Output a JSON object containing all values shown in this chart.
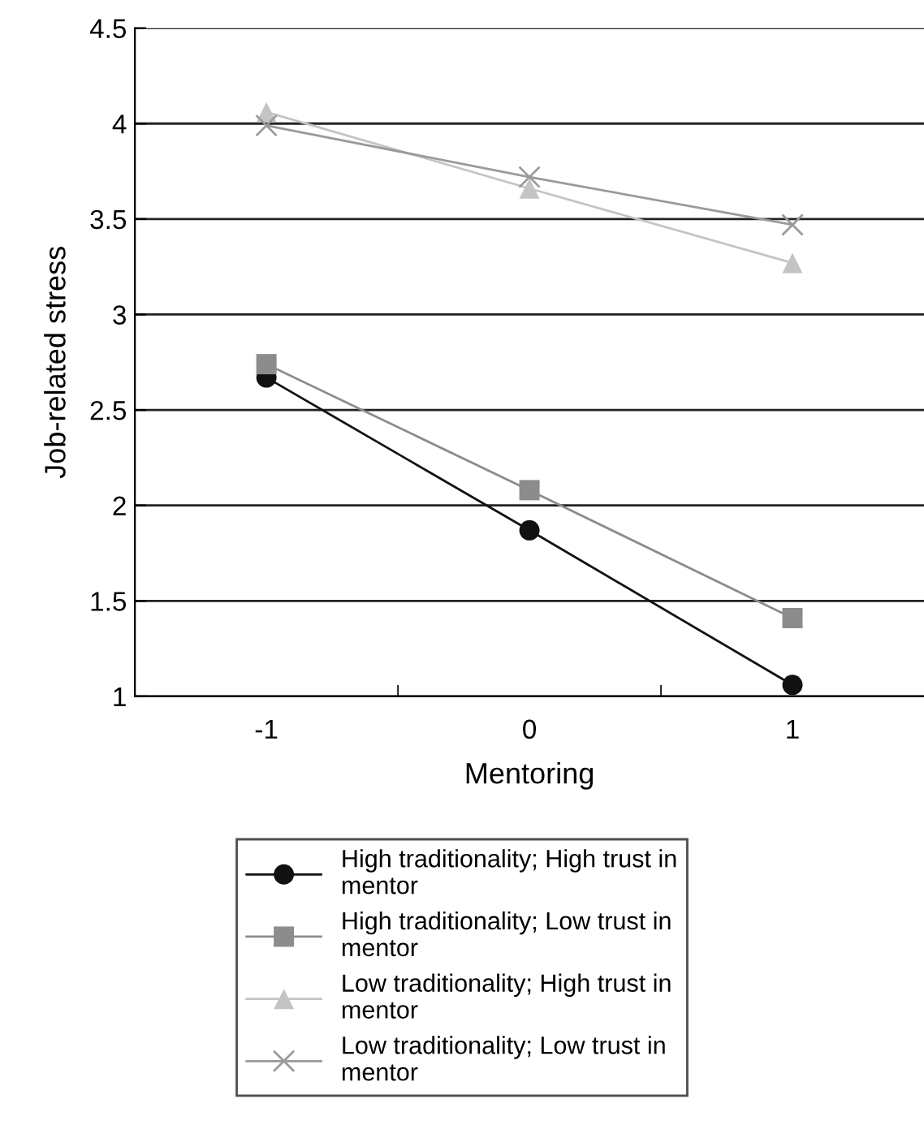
{
  "chart_data": {
    "type": "line",
    "xlabel": "Mentoring",
    "ylabel": "Job-related stress",
    "categories": [
      "-1",
      "0",
      "1"
    ],
    "series": [
      {
        "name": "High traditionality; High trust in\nmentor",
        "color": "#111111",
        "marker": "circle",
        "values": [
          2.67,
          1.87,
          1.06
        ]
      },
      {
        "name": "High traditionality; Low trust in\nmentor",
        "color": "#8c8c8c",
        "marker": "square",
        "values": [
          2.74,
          2.08,
          1.41
        ]
      },
      {
        "name": "Low traditionality; High trust in\nmentor",
        "color": "#c4c4c4",
        "marker": "triangle",
        "values": [
          4.06,
          3.66,
          3.27
        ]
      },
      {
        "name": "Low traditionality; Low trust in\nmentor",
        "color": "#9a9a9a",
        "marker": "cross",
        "values": [
          3.99,
          3.72,
          3.47
        ]
      }
    ],
    "ylim": [
      1,
      4.5
    ],
    "yticks": [
      1,
      1.5,
      2,
      2.5,
      3,
      3.5,
      4,
      4.5
    ],
    "grid": "y",
    "legend": "bottom"
  }
}
